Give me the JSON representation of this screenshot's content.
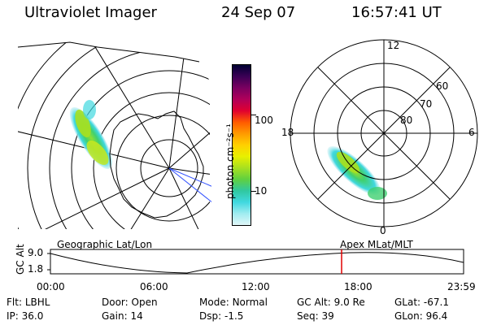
{
  "header": {
    "instrument": "Ultraviolet Imager",
    "date": "24 Sep 07",
    "time": "16:57:41 UT"
  },
  "geo_panel": {
    "label": "Geographic Lat/Lon"
  },
  "colorbar": {
    "unit_label": "photon cm⁻²s⁻¹",
    "ticks": [
      "100",
      "10"
    ],
    "colors": [
      "#000033",
      "#3a0055",
      "#7a0060",
      "#b0005a",
      "#e00030",
      "#ff5a00",
      "#ff9a00",
      "#ffd000",
      "#e8f000",
      "#a8e020",
      "#60d040",
      "#30c8a0",
      "#40d8e0",
      "#a0ecf0",
      "#e0f6f8"
    ]
  },
  "polar_panel": {
    "label": "Apex MLat/MLT",
    "mlt_labels": [
      "12",
      "18",
      "6",
      "0"
    ],
    "lat_labels": [
      "60",
      "70",
      "80"
    ]
  },
  "timeline": {
    "ylabel": "GC Alt",
    "ytick_top": "9.0",
    "ytick_bottom": "1.8",
    "xticks": [
      "00:00",
      "06:00",
      "12:00",
      "18:00",
      "23:59"
    ],
    "marker_color": "#e00000"
  },
  "info": {
    "row1": [
      {
        "key": "Flt:",
        "value": "LBHL"
      },
      {
        "key": "Door:",
        "value": "Open"
      },
      {
        "key": "Mode:",
        "value": "Normal"
      },
      {
        "key": "GC Alt:",
        "value": "9.0 Re"
      },
      {
        "key": "GLat:",
        "value": "-67.1"
      }
    ],
    "row2": [
      {
        "key": "IP:",
        "value": "36.0"
      },
      {
        "key": "Gain:",
        "value": "14"
      },
      {
        "key": "Dsp:",
        "value": "-1.5"
      },
      {
        "key": "Seq:",
        "value": "39"
      },
      {
        "key": "GLon:",
        "value": "96.4"
      }
    ]
  }
}
